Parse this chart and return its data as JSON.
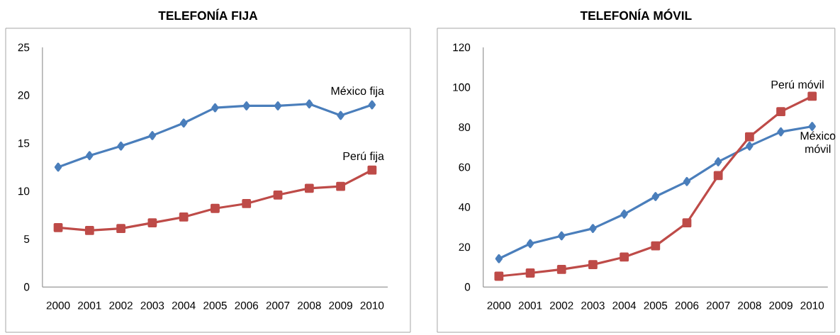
{
  "chart_data": [
    {
      "type": "line",
      "title": "TELEFONÍA FIJA",
      "categories": [
        "2000",
        "2001",
        "2002",
        "2003",
        "2004",
        "2005",
        "2006",
        "2007",
        "2008",
        "2009",
        "2010"
      ],
      "ylim": [
        0,
        25
      ],
      "yticks": [
        0,
        5,
        10,
        15,
        20,
        25
      ],
      "series": [
        {
          "name": "México fija",
          "color": "#4a7ebb",
          "marker": "diamond",
          "values": [
            12.5,
            13.7,
            14.7,
            15.8,
            17.1,
            18.7,
            18.9,
            18.9,
            19.1,
            17.9,
            19.0
          ]
        },
        {
          "name": "Perú fija",
          "color": "#be4b48",
          "marker": "square",
          "values": [
            6.2,
            5.9,
            6.1,
            6.7,
            7.3,
            8.2,
            8.7,
            9.6,
            10.3,
            10.5,
            12.2
          ]
        }
      ]
    },
    {
      "type": "line",
      "title": "TELEFONÍA MÓVIL",
      "categories": [
        "2000",
        "2001",
        "2002",
        "2003",
        "2004",
        "2005",
        "2006",
        "2007",
        "2008",
        "2009",
        "2010"
      ],
      "ylim": [
        0,
        120
      ],
      "yticks": [
        0,
        20,
        40,
        60,
        80,
        100,
        120
      ],
      "series": [
        {
          "name": "México móvil",
          "color": "#4a7ebb",
          "marker": "diamond",
          "values": [
            14.2,
            21.7,
            25.6,
            29.3,
            36.5,
            45.3,
            52.8,
            62.7,
            70.6,
            77.7,
            80.4
          ]
        },
        {
          "name": "Perú móvil",
          "color": "#be4b48",
          "marker": "square",
          "values": [
            5.4,
            7.0,
            8.8,
            11.2,
            15.0,
            20.6,
            32.1,
            55.8,
            75.2,
            87.8,
            95.5
          ]
        }
      ]
    }
  ]
}
